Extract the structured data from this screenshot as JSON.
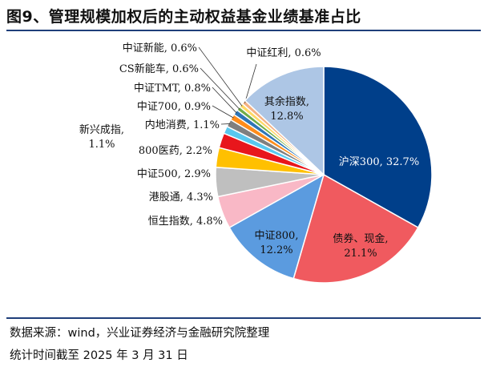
{
  "header": {
    "title": "图9、管理规模加权后的主动权益基金业绩基准占比"
  },
  "footer": {
    "source": "数据来源：wind，兴业证券经济与金融研究院整理",
    "period": "统计时间截至 2025 年 3 月 31 日"
  },
  "chart_data": {
    "type": "pie",
    "title": "图9、管理规模加权后的主动权益基金业绩基准占比",
    "unit": "%",
    "slices": [
      {
        "name": "沪深300",
        "value": 32.7,
        "color": "#003f8a",
        "label": [
          "沪深300, 32.7%"
        ]
      },
      {
        "name": "债券、现金",
        "value": 21.1,
        "color": "#f05a5f",
        "label": [
          "债券、现金,",
          "21.1%"
        ]
      },
      {
        "name": "中证800",
        "value": 12.2,
        "color": "#5b9bdf",
        "label": [
          "中证800,",
          "12.2%"
        ]
      },
      {
        "name": "恒生指数",
        "value": 4.8,
        "color": "#f9b8c6",
        "label": [
          "恒生指数, 4.8%"
        ]
      },
      {
        "name": "港股通",
        "value": 4.3,
        "color": "#bfbfbf",
        "label": [
          "港股通, 4.3%"
        ]
      },
      {
        "name": "中证500",
        "value": 2.9,
        "color": "#ffc000",
        "label": [
          "中证500, 2.9%"
        ]
      },
      {
        "name": "800医药",
        "value": 2.2,
        "color": "#e8161c",
        "label": [
          "800医药, 2.2%"
        ]
      },
      {
        "name": "新兴成指",
        "value": 1.1,
        "color": "#59c8ef",
        "label": [
          "新兴成指,",
          "1.1%"
        ]
      },
      {
        "name": "内地消费",
        "value": 1.1,
        "color": "#7f7f7f",
        "label": [
          "内地消费, 1.1%"
        ]
      },
      {
        "name": "中证700",
        "value": 0.9,
        "color": "#ff8c1a",
        "label": [
          "中证700, 0.9%"
        ]
      },
      {
        "name": "中证TMT",
        "value": 0.8,
        "color": "#2e75b6",
        "label": [
          "中证TMT, 0.8%"
        ]
      },
      {
        "name": "CS新能车",
        "value": 0.6,
        "color": "#70ad47",
        "label": [
          "CS新能车, 0.6%"
        ]
      },
      {
        "name": "中证新能",
        "value": 0.6,
        "color": "#ffd966",
        "label": [
          "中证新能, 0.6%"
        ]
      },
      {
        "name": "中证红利",
        "value": 0.6,
        "color": "#f4b183",
        "label": [
          "中证红利, 0.6%"
        ]
      },
      {
        "name": "其余指数",
        "value": 12.8,
        "color": "#adc6e5",
        "label": [
          "其余指数,",
          "12.8%"
        ]
      }
    ]
  }
}
